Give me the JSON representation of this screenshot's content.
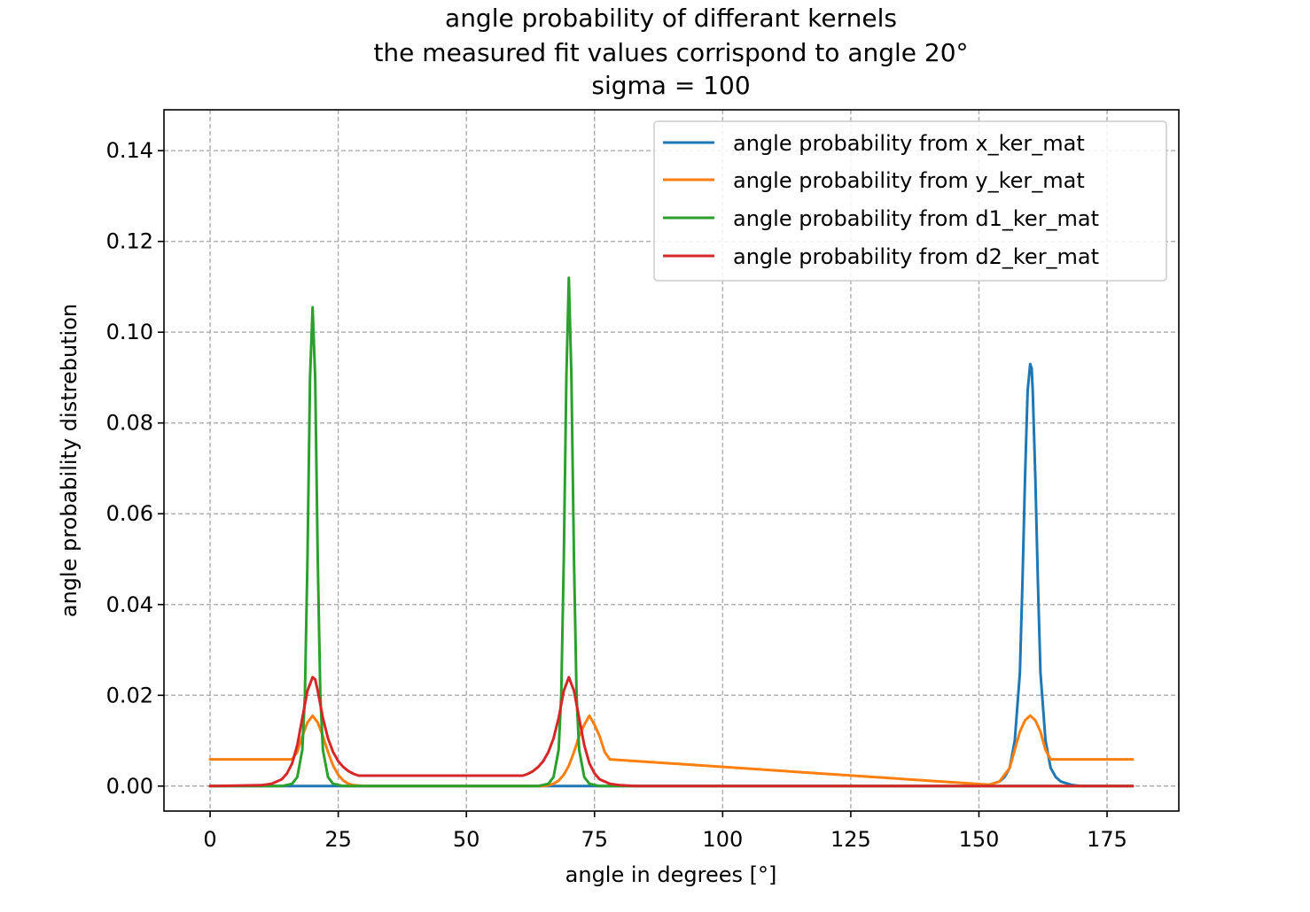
{
  "chart_data": {
    "type": "line",
    "title": [
      "angle probability of differant kernels",
      "the measured fit values corrispond to angle 20°",
      "sigma = 100"
    ],
    "xlabel": "angle in degrees [°]",
    "ylabel": "angle probability distrebution",
    "xlim": [
      -9,
      189
    ],
    "ylim": [
      -0.0055,
      0.149
    ],
    "xticks": [
      0,
      25,
      50,
      75,
      100,
      125,
      150,
      175
    ],
    "yticks": [
      0.0,
      0.02,
      0.04,
      0.06,
      0.08,
      0.1,
      0.12,
      0.14
    ],
    "xtick_labels": [
      "0",
      "25",
      "50",
      "75",
      "100",
      "125",
      "150",
      "175"
    ],
    "ytick_labels": [
      "0.00",
      "0.02",
      "0.04",
      "0.06",
      "0.08",
      "0.10",
      "0.12",
      "0.14"
    ],
    "grid": true,
    "legend_position": "top-right",
    "series": [
      {
        "name": "angle probability from x_ker_mat",
        "color": "#1f77b4",
        "x": [
          0,
          150,
          152,
          154,
          155,
          156,
          157,
          158,
          158.5,
          159,
          159.5,
          160,
          160.3,
          160.5,
          161,
          161.5,
          162,
          163,
          164,
          165,
          166,
          168,
          170,
          180
        ],
        "y": [
          0,
          0,
          0.0003,
          0.001,
          0.002,
          0.004,
          0.01,
          0.025,
          0.045,
          0.068,
          0.087,
          0.093,
          0.092,
          0.087,
          0.068,
          0.045,
          0.025,
          0.01,
          0.004,
          0.002,
          0.001,
          0.0003,
          0,
          0
        ]
      },
      {
        "name": "angle probability from y_ker_mat",
        "color": "#ff7f0e",
        "x": [
          0,
          16,
          17,
          18,
          19,
          20,
          21,
          22,
          23,
          24,
          25,
          26,
          27,
          28,
          30,
          65,
          66,
          67,
          68,
          69,
          70,
          71,
          72,
          73,
          74,
          75,
          76,
          77,
          78,
          152,
          154,
          156,
          157,
          158,
          159,
          160,
          161,
          162,
          163,
          164,
          180
        ],
        "y": [
          0.0059,
          0.0059,
          0.0075,
          0.011,
          0.014,
          0.0155,
          0.014,
          0.011,
          0.0075,
          0.0045,
          0.0025,
          0.0012,
          0.0005,
          0.0002,
          0,
          0,
          0.0002,
          0.0005,
          0.0012,
          0.0025,
          0.0045,
          0.0075,
          0.011,
          0.0135,
          0.0155,
          0.0135,
          0.011,
          0.0075,
          0.0059,
          0.0003,
          0.001,
          0.004,
          0.008,
          0.012,
          0.0145,
          0.0155,
          0.0145,
          0.012,
          0.008,
          0.0059,
          0.0059
        ]
      },
      {
        "name": "angle probability from d1_ker_mat",
        "color": "#2ca02c",
        "x": [
          0,
          14,
          16,
          17,
          18,
          18.5,
          19,
          19.5,
          20,
          20.5,
          21,
          21.5,
          22,
          23,
          24,
          26,
          30,
          64,
          66,
          67,
          68,
          68.5,
          69,
          69.5,
          70,
          70.5,
          71,
          71.5,
          72,
          73,
          74,
          76,
          80,
          180
        ],
        "y": [
          0,
          0,
          0.0005,
          0.002,
          0.008,
          0.02,
          0.05,
          0.09,
          0.1055,
          0.09,
          0.05,
          0.02,
          0.008,
          0.002,
          0.0005,
          0,
          0,
          0,
          0.0005,
          0.002,
          0.008,
          0.02,
          0.05,
          0.09,
          0.112,
          0.09,
          0.05,
          0.02,
          0.008,
          0.002,
          0.0005,
          0,
          0,
          0
        ]
      },
      {
        "name": "angle probability from d2_ker_mat",
        "color": "#d62728",
        "x": [
          0,
          10,
          12,
          14,
          15,
          16,
          17,
          18,
          19,
          20,
          20.5,
          21,
          22,
          23,
          24,
          25,
          26,
          27,
          28,
          29,
          61,
          62,
          63,
          64,
          65,
          66,
          67,
          68,
          69,
          70,
          71,
          72,
          73,
          74,
          75,
          76,
          78,
          80,
          83,
          180
        ],
        "y": [
          0,
          0.0002,
          0.0005,
          0.0015,
          0.0028,
          0.005,
          0.009,
          0.015,
          0.021,
          0.024,
          0.0235,
          0.021,
          0.015,
          0.0105,
          0.0075,
          0.0055,
          0.0042,
          0.0033,
          0.0027,
          0.0023,
          0.0023,
          0.0027,
          0.0033,
          0.0042,
          0.0055,
          0.0075,
          0.0105,
          0.015,
          0.021,
          0.024,
          0.021,
          0.015,
          0.009,
          0.005,
          0.0028,
          0.0015,
          0.0005,
          0.0002,
          0,
          0
        ]
      }
    ]
  }
}
